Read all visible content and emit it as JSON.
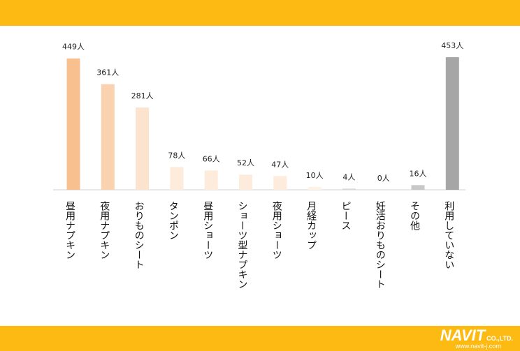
{
  "brand": {
    "name": "NAVIT",
    "suffix": "CO.,LTD.",
    "url": "www.navit-j.com"
  },
  "colors": {
    "band": "#FDBA12"
  },
  "chart_data": {
    "type": "bar",
    "categories": [
      "昼用ナプキン",
      "夜用ナプキン",
      "おりものシート",
      "タンポン",
      "昼用ショーツ",
      "ショーツ型ナプキン",
      "夜用ショーツ",
      "月経カップ",
      "ピース",
      "妊活おりものシート",
      "その他",
      "利用していない"
    ],
    "values": [
      449,
      361,
      281,
      78,
      66,
      52,
      47,
      10,
      4,
      0,
      16,
      453
    ],
    "value_labels": [
      "449人",
      "361人",
      "281人",
      "78人",
      "66人",
      "52人",
      "47人",
      "10人",
      "4人",
      "0人",
      "16人",
      "453人"
    ],
    "bar_colors": [
      "#F8C08F",
      "#FAD2B0",
      "#FCE3CD",
      "#FDEBDB",
      "#FDEBDB",
      "#FDEBDB",
      "#FDEBDB",
      "#FEF2E7",
      "#D9D9D9",
      "#D9D9D9",
      "#C8C8C8",
      "#A6A6A6"
    ],
    "unit": "人",
    "ylim": [
      0,
      453
    ],
    "grid": false,
    "legend": "none"
  }
}
